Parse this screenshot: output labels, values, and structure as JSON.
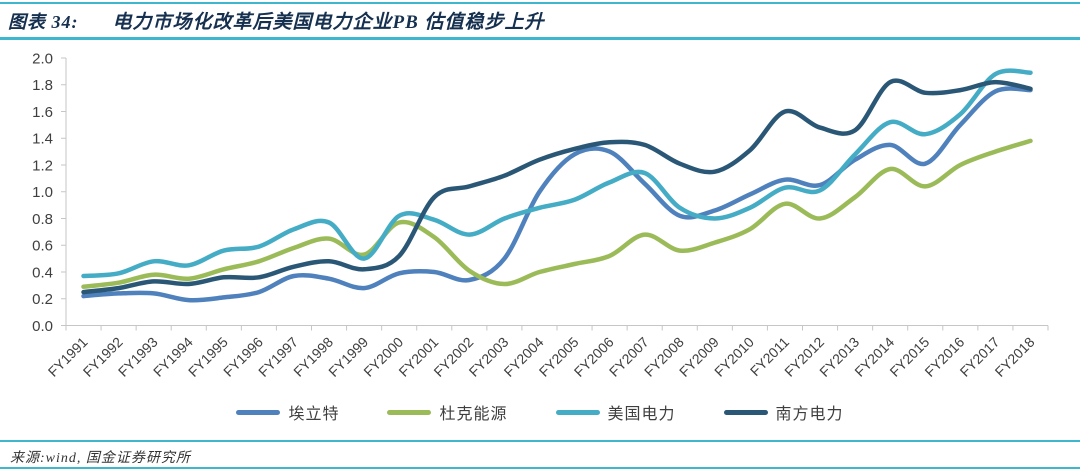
{
  "figure": {
    "label": "图表 34:",
    "title": "电力市场化改革后美国电力企业PB 估值稳步上升",
    "source": "来源:wind, 国金证券研究所",
    "accent_color": "#3eb6ce",
    "title_color": "#16304f",
    "axis_color": "#c6c6c6",
    "tick_text_color": "#3f3f3f"
  },
  "chart_data": {
    "type": "line",
    "title": "电力市场化改革后美国电力企业PB 估值稳步上升",
    "xlabel": "",
    "ylabel": "",
    "ylim": [
      0.0,
      2.0
    ],
    "ytick_step": 0.2,
    "yticks": [
      "0.0",
      "0.2",
      "0.4",
      "0.6",
      "0.8",
      "1.0",
      "1.2",
      "1.4",
      "1.6",
      "1.8",
      "2.0"
    ],
    "grid": false,
    "smooth": true,
    "legend_position": "bottom",
    "x": [
      "FY1991",
      "FY1992",
      "FY1993",
      "FY1994",
      "FY1995",
      "FY1996",
      "FY1997",
      "FY1998",
      "FY1999",
      "FY2000",
      "FY2001",
      "FY2002",
      "FY2003",
      "FY2004",
      "FY2005",
      "FY2006",
      "FY2007",
      "FY2008",
      "FY2009",
      "FY2010",
      "FY2011",
      "FY2012",
      "FY2013",
      "FY2014",
      "FY2015",
      "FY2016",
      "FY2017",
      "FY2018"
    ],
    "series": [
      {
        "name": "埃立特",
        "color": "#4f81bd",
        "values": [
          0.22,
          0.24,
          0.24,
          0.19,
          0.21,
          0.25,
          0.37,
          0.35,
          0.28,
          0.39,
          0.4,
          0.34,
          0.5,
          1.0,
          1.28,
          1.3,
          1.06,
          0.82,
          0.86,
          0.98,
          1.09,
          1.05,
          1.24,
          1.35,
          1.21,
          1.5,
          1.75,
          1.76
        ]
      },
      {
        "name": "杜克能源",
        "color": "#9bbb59",
        "values": [
          0.29,
          0.32,
          0.38,
          0.35,
          0.42,
          0.48,
          0.58,
          0.65,
          0.53,
          0.77,
          0.66,
          0.41,
          0.31,
          0.4,
          0.46,
          0.52,
          0.68,
          0.56,
          0.62,
          0.72,
          0.91,
          0.8,
          0.96,
          1.17,
          1.04,
          1.2,
          1.3,
          1.38
        ]
      },
      {
        "name": "美国电力",
        "color": "#45acc5",
        "values": [
          0.37,
          0.39,
          0.48,
          0.45,
          0.56,
          0.59,
          0.72,
          0.77,
          0.5,
          0.82,
          0.79,
          0.68,
          0.8,
          0.88,
          0.94,
          1.07,
          1.14,
          0.88,
          0.8,
          0.88,
          1.03,
          1.01,
          1.28,
          1.52,
          1.43,
          1.58,
          1.88,
          1.89
        ]
      },
      {
        "name": "南方电力",
        "color": "#2b5777",
        "values": [
          0.25,
          0.28,
          0.33,
          0.31,
          0.36,
          0.36,
          0.44,
          0.48,
          0.42,
          0.52,
          0.96,
          1.04,
          1.12,
          1.24,
          1.32,
          1.37,
          1.35,
          1.21,
          1.15,
          1.31,
          1.6,
          1.48,
          1.46,
          1.82,
          1.74,
          1.76,
          1.82,
          1.77
        ]
      }
    ]
  }
}
